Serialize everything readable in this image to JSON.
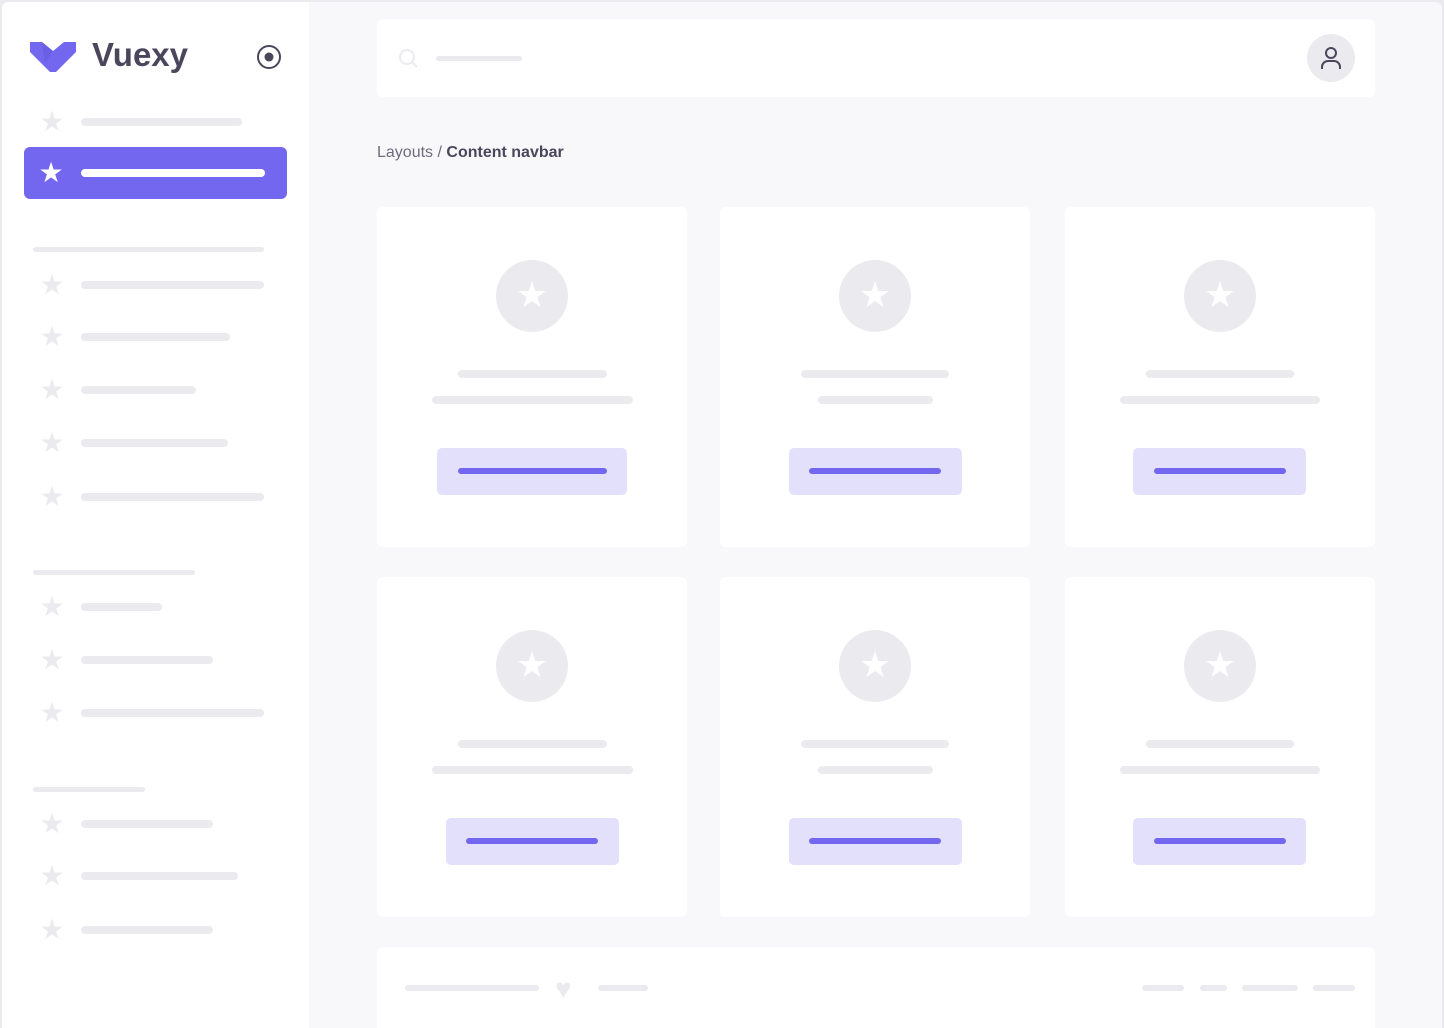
{
  "brand": {
    "name": "Vuexy",
    "logo_icon": "vuexy-logo",
    "pin_icon": "radio-target-icon"
  },
  "colors": {
    "accent": "#7367f0",
    "accent_light": "#e3e0fc",
    "placeholder": "#ebebef",
    "background": "#f8f8fa",
    "text": "#4b465c"
  },
  "navbar": {
    "search_icon": "search-icon",
    "avatar_icon": "user-icon"
  },
  "breadcrumb": {
    "parent": "Layouts",
    "separator": " / ",
    "current": "Content navbar"
  },
  "footer": {
    "icon": "heart-icon"
  }
}
